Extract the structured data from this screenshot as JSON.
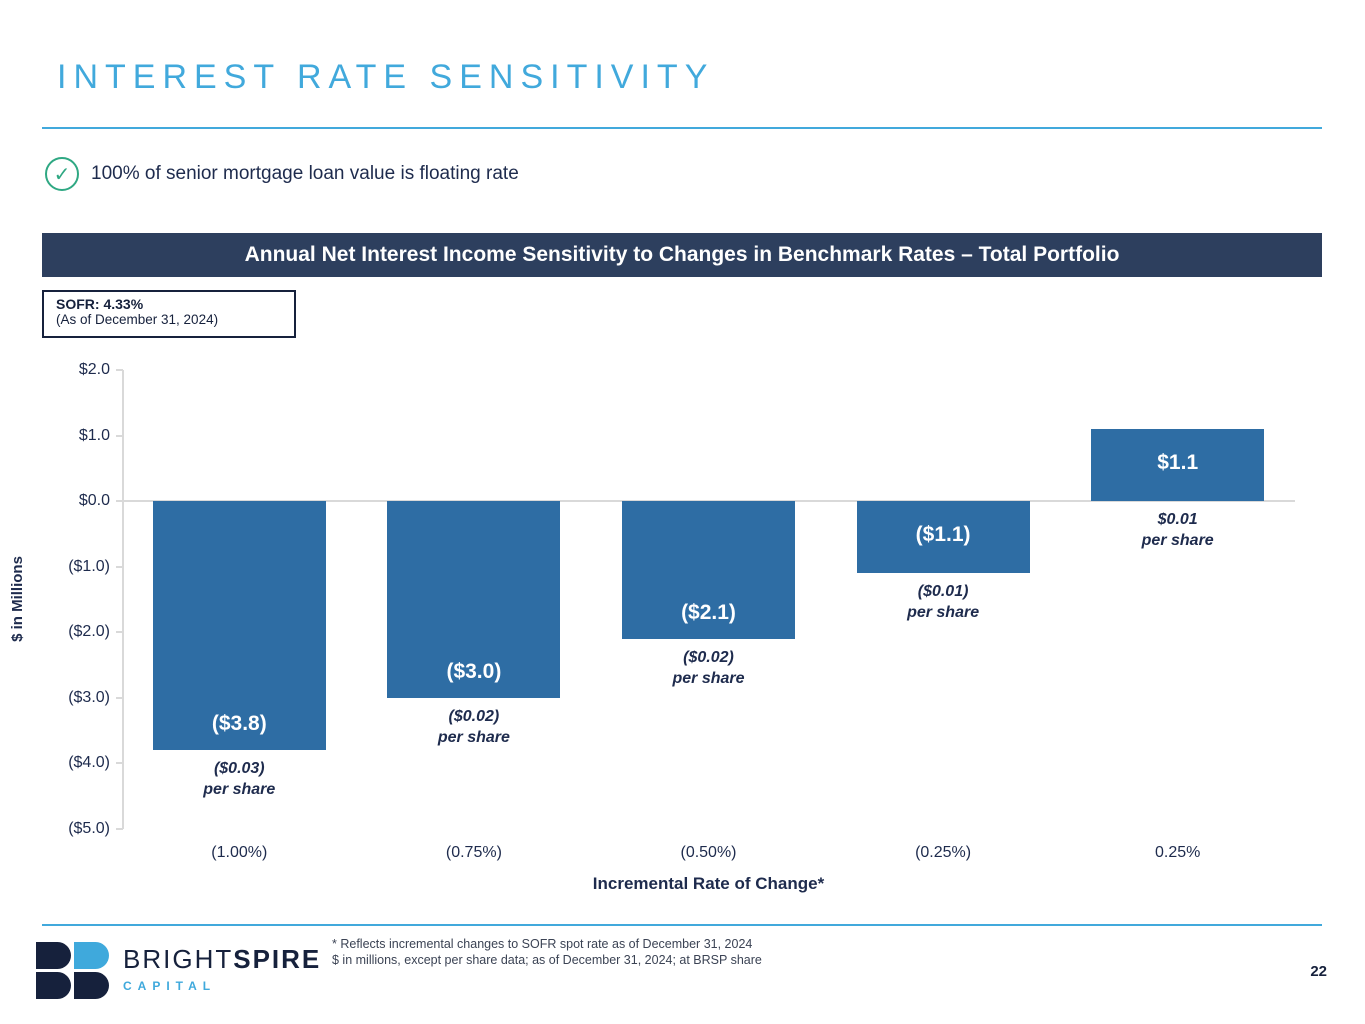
{
  "slide": {
    "title": "INTEREST RATE SENSITIVITY",
    "bullet": {
      "icon": "check-circle-icon",
      "check_glyph": "✓",
      "text": "100% of senior mortgage loan value is floating rate"
    },
    "banner": "Annual Net Interest Income Sensitivity to Changes in Benchmark Rates – Total Portfolio",
    "sofr_box": {
      "line1": "SOFR: 4.33%",
      "line2": "(As of December 31, 2024)"
    },
    "footnotes": [
      "* Reflects incremental changes to SOFR spot rate as of December 31, 2024",
      "$ in millions, except per share data; as of December 31, 2024; at BRSP share"
    ],
    "logo": {
      "brand_light": "BRIGHT",
      "brand_bold": "SPIRE",
      "subtitle": "CAPITAL"
    },
    "page_number": "22"
  },
  "colors": {
    "accent_light_blue": "#41a9dc",
    "banner_navy": "#2d3f5e",
    "bar_blue": "#2e6da4",
    "text_navy": "#1e2b4d",
    "logo_navy": "#16213c",
    "gridline_gray": "#d9d9d9",
    "check_green": "#2fa883",
    "bar_label_white": "#ffffff"
  },
  "chart_data": {
    "type": "bar",
    "title": "Annual Net Interest Income Sensitivity to Changes in Benchmark Rates – Total Portfolio",
    "categories": [
      "(1.00%)",
      "(0.75%)",
      "(0.50%)",
      "(0.25%)",
      "0.25%"
    ],
    "values": [
      -3.8,
      -3.0,
      -2.1,
      -1.1,
      1.1
    ],
    "bar_labels": [
      "($3.8)",
      "($3.0)",
      "($2.1)",
      "($1.1)",
      "$1.1"
    ],
    "per_share_labels": [
      [
        "($0.03)",
        "per share"
      ],
      [
        "($0.02)",
        "per share"
      ],
      [
        "($0.02)",
        "per share"
      ],
      [
        "($0.01)",
        "per share"
      ],
      [
        "$0.01",
        "per share"
      ]
    ],
    "xlabel": "Incremental Rate of Change*",
    "ylabel": "$ in Millions",
    "ylim": [
      -5.0,
      2.0
    ],
    "ytick_values": [
      2.0,
      1.0,
      0.0,
      -1.0,
      -2.0,
      -3.0,
      -4.0,
      -5.0
    ],
    "ytick_labels": [
      "$2.0",
      "$1.0",
      "$0.0",
      "($1.0)",
      "($2.0)",
      "($3.0)",
      "($4.0)",
      "($5.0)"
    ],
    "grid": false,
    "legend": false,
    "annotation_note": "SOFR: 4.33% (As of December 31, 2024)"
  }
}
